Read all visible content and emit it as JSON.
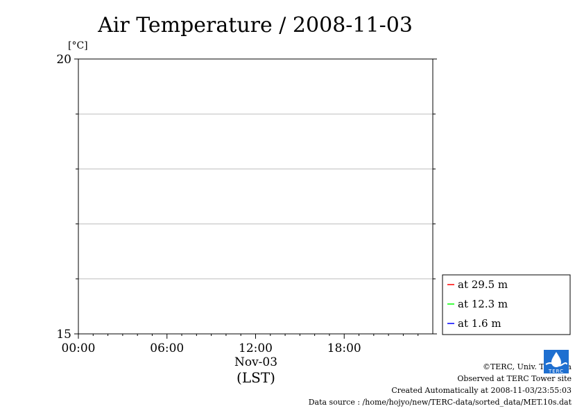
{
  "chart_data": {
    "type": "line",
    "title": "Air Temperature / 2008-11-03",
    "ylabel": "[°C]",
    "xlabel": "(LST)",
    "date_label": "Nov-03",
    "ylim": [
      15,
      20
    ],
    "y_ticks": [
      "20",
      "15"
    ],
    "x_range_hours": [
      0,
      24
    ],
    "x_ticks": [
      {
        "label": "00:00",
        "hour": 0
      },
      {
        "label": "06:00",
        "hour": 6
      },
      {
        "label": "12:00",
        "hour": 12
      },
      {
        "label": "18:00",
        "hour": 18
      }
    ],
    "grid_y": [
      16,
      17,
      18,
      19
    ],
    "grid": true,
    "legend_position": "bottom-right-outside",
    "series": [
      {
        "name": "at 29.5 m",
        "color": "#ff0000",
        "values": []
      },
      {
        "name": "at 12.3 m",
        "color": "#00ff00",
        "values": []
      },
      {
        "name": "at 1.6 m",
        "color": "#0000ff",
        "values": []
      }
    ]
  },
  "credits": {
    "copyright": "©TERC, Univ. Tsukuba",
    "observed": "Observed at TERC Tower site",
    "created": "Created Automatically at 2008-11-03/23:55:03",
    "source": "Data source : /home/hojyo/new/TERC-data/sorted_data/MET.10s.dat"
  },
  "logo": {
    "name": "TERC",
    "text": "TERC",
    "color": "#1e6fd0"
  }
}
